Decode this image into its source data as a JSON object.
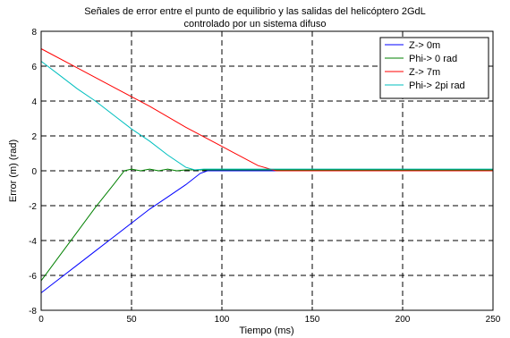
{
  "chart_data": {
    "type": "line",
    "title": [
      "Señales de error entre el punto de equilibrio y las salidas del helicóptero 2GdL",
      "controlado por un sistema difuso"
    ],
    "xlabel": "Tiempo (ms)",
    "ylabel": "Error (m) (rad)",
    "xlim": [
      0,
      250
    ],
    "ylim": [
      -8,
      8
    ],
    "xticks": [
      "0",
      "50",
      "100",
      "150",
      "200",
      "250"
    ],
    "yticks": [
      "8",
      "6",
      "4",
      "2",
      "0",
      "-2",
      "-4",
      "-6",
      "-8"
    ],
    "grid": true,
    "legend_position": "top-right",
    "series": [
      {
        "name": "Z-> 0m",
        "color": "#0000ff",
        "x": [
          0,
          10,
          20,
          30,
          40,
          50,
          60,
          70,
          80,
          88,
          92,
          100,
          150,
          200,
          250
        ],
        "y": [
          -7.0,
          -6.2,
          -5.4,
          -4.6,
          -3.8,
          -3.0,
          -2.2,
          -1.5,
          -0.8,
          -0.15,
          0.0,
          0.0,
          0.0,
          0.0,
          0.0
        ]
      },
      {
        "name": "Phi-> 0 rad",
        "color": "#008000",
        "x": [
          0,
          10,
          20,
          30,
          40,
          46,
          50,
          55,
          60,
          65,
          70,
          75,
          80,
          90,
          100,
          150,
          200,
          250
        ],
        "y": [
          -6.3,
          -4.9,
          -3.5,
          -2.1,
          -0.8,
          0.0,
          0.1,
          0.0,
          0.1,
          0.0,
          0.1,
          0.0,
          0.05,
          0.05,
          0.05,
          0.05,
          0.05,
          0.05
        ]
      },
      {
        "name": "Z-> 7m",
        "color": "#ff0000",
        "x": [
          0,
          20,
          40,
          60,
          80,
          100,
          120,
          130,
          150,
          200,
          250
        ],
        "y": [
          7.0,
          5.9,
          4.8,
          3.7,
          2.5,
          1.4,
          0.3,
          0.0,
          0.0,
          0.0,
          0.0
        ]
      },
      {
        "name": "Phi-> 2pi rad",
        "color": "#00bfbf",
        "x": [
          0,
          10,
          20,
          30,
          40,
          50,
          60,
          70,
          80,
          85,
          90,
          100,
          150,
          200,
          250
        ],
        "y": [
          6.28,
          5.5,
          4.7,
          4.0,
          3.2,
          2.4,
          1.7,
          0.9,
          0.2,
          0.05,
          0.1,
          0.1,
          0.1,
          0.1,
          0.1
        ]
      }
    ]
  }
}
